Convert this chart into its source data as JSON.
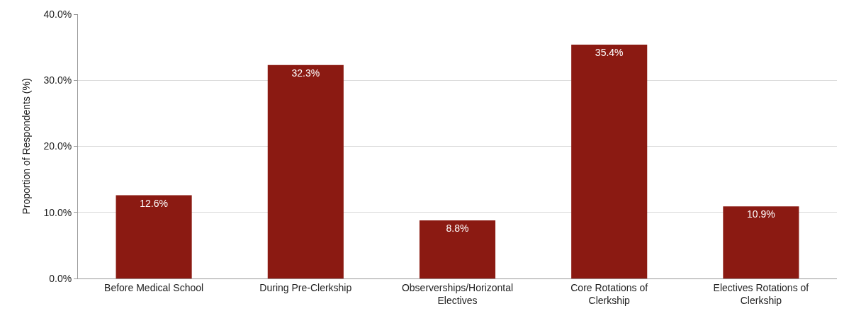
{
  "chart_data": {
    "type": "bar",
    "ylabel": "Proportion of Respondents (%)",
    "categories": [
      "Before Medical School",
      "During Pre-Clerkship",
      "Observerships/Horizontal Electives",
      "Core Rotations of Clerkship",
      "Electives Rotations of Clerkship"
    ],
    "values": [
      12.6,
      32.3,
      8.8,
      35.4,
      10.9
    ],
    "value_labels": [
      "12.6%",
      "32.3%",
      "8.8%",
      "35.4%",
      "10.9%"
    ],
    "color": "#8b1a12",
    "ylim": [
      0,
      40
    ],
    "yticks": [
      {
        "value": 0,
        "label": "0.0%"
      },
      {
        "value": 10,
        "label": "10.0%"
      },
      {
        "value": 20,
        "label": "20.0%"
      },
      {
        "value": 30,
        "label": "30.0%"
      },
      {
        "value": 40,
        "label": "40.0%"
      }
    ],
    "grid": "y",
    "legend": false
  }
}
